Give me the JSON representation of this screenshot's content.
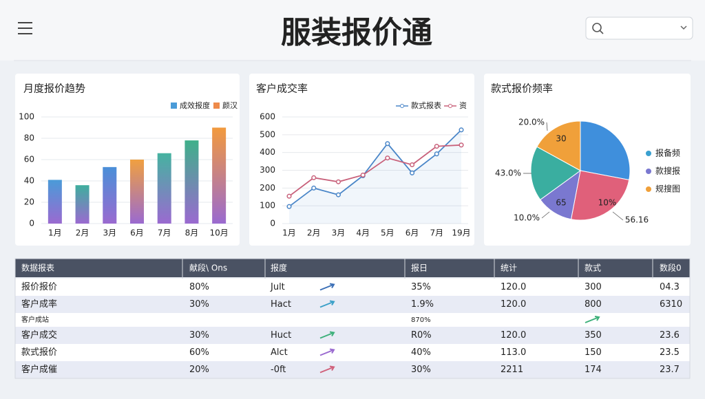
{
  "header": {
    "title": "服装报价通"
  },
  "charts": [
    {
      "type": "bar",
      "title": "月度报价趋势",
      "categories": [
        "1月",
        "2月",
        "3月",
        "6月",
        "7月",
        "8月",
        "10月"
      ],
      "values": [
        41,
        36,
        53,
        60,
        66,
        78,
        90
      ],
      "colors": [
        "#4a9bd8",
        "#3fae9e",
        "#4a8fd8",
        "#f0a040",
        "#45b3a0",
        "#3fb08a",
        "#f29a3e"
      ],
      "ylim": [
        0,
        100
      ],
      "yticks": [
        0,
        20,
        40,
        60,
        80,
        100
      ],
      "grid": true,
      "legend": [
        {
          "name": "成效报度",
          "color": "#4a9bd8"
        },
        {
          "name": "颜汉",
          "color": "#ee8a4a"
        }
      ]
    },
    {
      "type": "line",
      "title": "客户成交率",
      "categories": [
        "1月",
        "2月",
        "3月",
        "4月",
        "5月",
        "6月",
        "7月",
        "19月"
      ],
      "ylim": [
        0,
        600
      ],
      "yticks": [
        0,
        100,
        200,
        300,
        400,
        500,
        600
      ],
      "grid": true,
      "series": [
        {
          "name": "款式报表",
          "color": "#4a86c8",
          "values": [
            96,
            200,
            162,
            269,
            450,
            285,
            392,
            527
          ]
        },
        {
          "name": "资",
          "color": "#c8607a",
          "values": [
            154,
            258,
            235,
            273,
            369,
            331,
            435,
            442
          ]
        }
      ]
    },
    {
      "type": "pie",
      "title": "款式报价频率",
      "slices": [
        {
          "value": 28,
          "color": "#3f8fdc"
        },
        {
          "value": 25,
          "color": "#e0607a"
        },
        {
          "value": 12,
          "color": "#7a78d0"
        },
        {
          "value": 18,
          "color": "#3aaea0"
        },
        {
          "value": 17,
          "color": "#f0a03a"
        }
      ],
      "inner_labels": [
        "30",
        "65",
        "10%"
      ],
      "outer_labels": [
        "20.0%",
        "43.0%",
        "10.0%",
        "56.16"
      ],
      "legend": [
        {
          "name": "报备频",
          "color": "#3aa0d0"
        },
        {
          "name": "款搜报",
          "color": "#7a78d0"
        },
        {
          "name": "规搜图",
          "color": "#f0a03a"
        }
      ]
    }
  ],
  "table": {
    "headers": [
      "数据报表",
      "献段\\ Ons",
      "报度",
      "报日",
      "统计",
      "款式",
      "数段0"
    ],
    "rows": [
      [
        "报价报价",
        "80%",
        "Jult",
        "35%",
        "120.0",
        "300",
        "04.3"
      ],
      [
        "客户成率",
        "30%",
        "Hact",
        "1.9%",
        "120.0",
        "800",
        "6310"
      ],
      [
        "客户成站",
        "",
        "",
        "870%",
        "",
        "",
        ""
      ],
      [
        "客户成交",
        "30%",
        "Huct",
        "R0%",
        "120.0",
        "350",
        "23.6"
      ],
      [
        "款式报价",
        "60%",
        "Alct",
        "40%",
        "113.0",
        "150",
        "23.5"
      ],
      [
        "客户成催",
        "20%",
        "-0ft",
        "30%",
        "2211",
        "174",
        "23.7"
      ]
    ]
  }
}
